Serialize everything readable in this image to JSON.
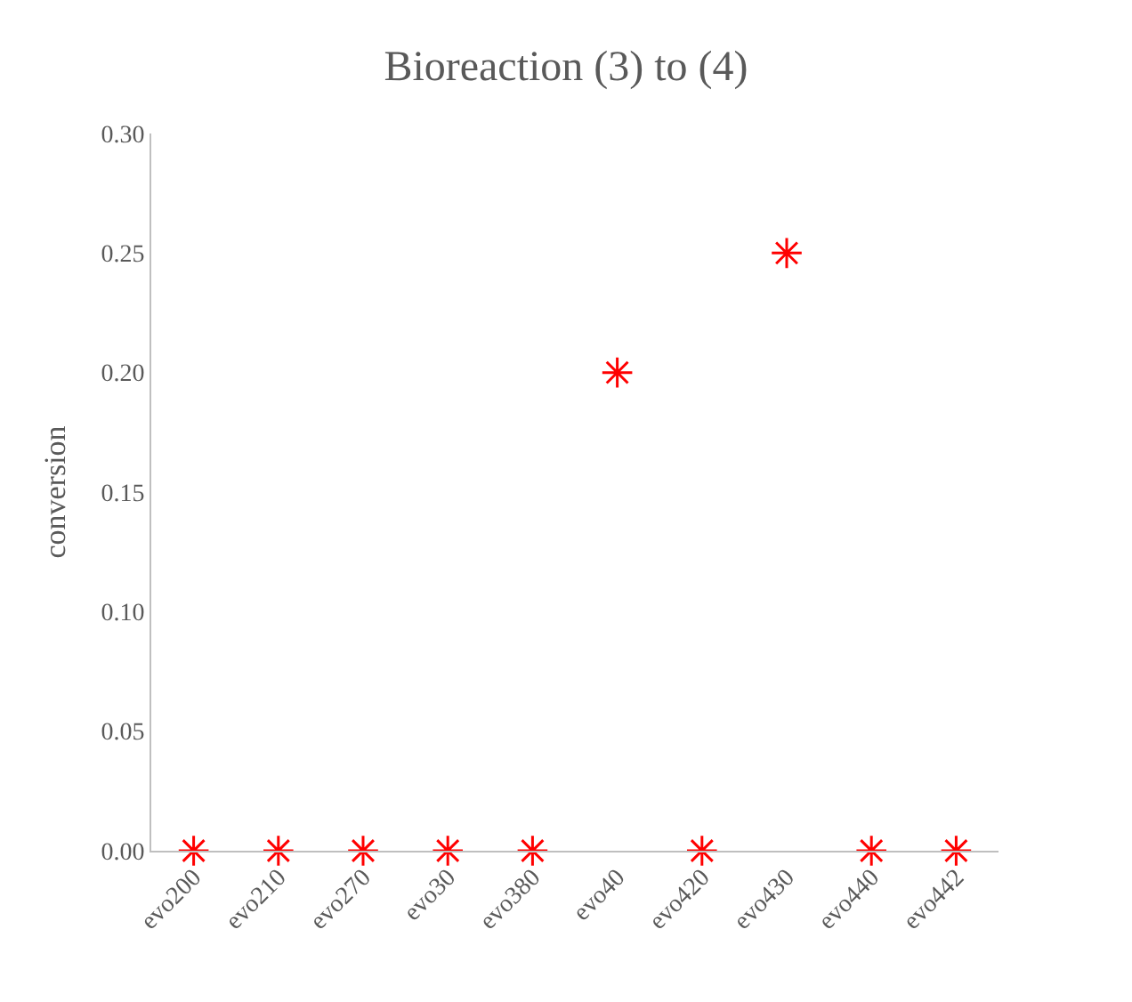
{
  "chart_data": {
    "type": "scatter",
    "title": "Bioreaction (3) to (4)",
    "ylabel": "conversion",
    "categories": [
      "evo200",
      "evo210",
      "evo270",
      "evo30",
      "evo380",
      "evo40",
      "evo420",
      "evo430",
      "evo440",
      "evo442"
    ],
    "series": [
      {
        "color": "#ff0000",
        "values": [
          0,
          0,
          0,
          0,
          0,
          0.2,
          0,
          0.25,
          0,
          0
        ]
      }
    ],
    "ylim": [
      0,
      0.3
    ],
    "yticks": [
      {
        "value": 0,
        "label": "0.00"
      },
      {
        "value": 0.05,
        "label": "0.05"
      },
      {
        "value": 0.1,
        "label": "0.10"
      },
      {
        "value": 0.15,
        "label": "0.15"
      },
      {
        "value": 0.2,
        "label": "0.20"
      },
      {
        "value": 0.25,
        "label": "0.25"
      },
      {
        "value": 0.3,
        "label": "0.30"
      }
    ],
    "marker": "cross",
    "legend": false
  }
}
